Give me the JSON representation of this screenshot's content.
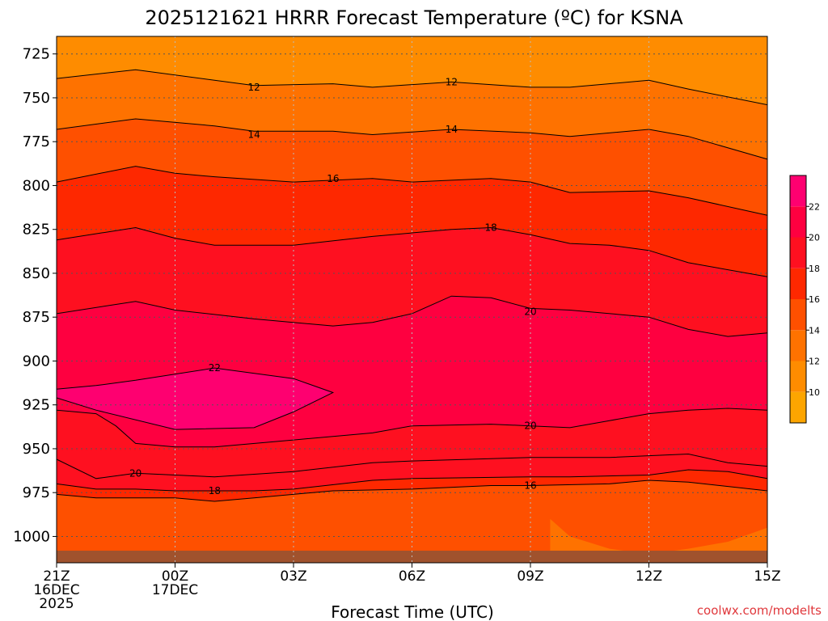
{
  "chart_data": {
    "type": "contour",
    "title": "2025121621 HRRR Forecast Temperature (ºC) for KSNA",
    "xlabel": "Forecast Time (UTC)",
    "ylabel": "",
    "credit": "coolwx.com/modelts",
    "x_hours": [
      0,
      18
    ],
    "y_levels": [
      1015,
      715
    ],
    "x_ticks": [
      {
        "h": 0,
        "lines": [
          "21Z",
          "16DEC",
          "2025"
        ]
      },
      {
        "h": 3,
        "lines": [
          "00Z",
          "17DEC"
        ]
      },
      {
        "h": 6,
        "lines": [
          "03Z"
        ]
      },
      {
        "h": 9,
        "lines": [
          "06Z"
        ]
      },
      {
        "h": 12,
        "lines": [
          "09Z"
        ]
      },
      {
        "h": 15,
        "lines": [
          "12Z"
        ]
      },
      {
        "h": 18,
        "lines": [
          "15Z"
        ]
      }
    ],
    "y_ticks": [
      725,
      750,
      775,
      800,
      825,
      850,
      875,
      900,
      925,
      950,
      975,
      1000
    ],
    "colorbar": {
      "labels": [
        10,
        12,
        14,
        16,
        18,
        20,
        22
      ],
      "colors": [
        "#fda500",
        "#fe8c00",
        "#fe7200",
        "#fe5000",
        "#fe2800",
        "#fe1020",
        "#fe0040",
        "#fe0070"
      ]
    },
    "contours": [
      {
        "value": 12,
        "label_positions": [
          {
            "h": 5,
            "p": 744
          },
          {
            "h": 10,
            "p": 741
          }
        ],
        "points": [
          [
            0,
            739
          ],
          [
            2,
            734
          ],
          [
            4,
            740
          ],
          [
            5,
            743
          ],
          [
            7,
            742
          ],
          [
            8,
            744
          ],
          [
            10,
            741
          ],
          [
            12,
            744
          ],
          [
            13,
            744
          ],
          [
            15,
            740
          ],
          [
            16,
            745
          ],
          [
            18,
            754
          ]
        ]
      },
      {
        "value": 14,
        "label_positions": [
          {
            "h": 5,
            "p": 771
          },
          {
            "h": 10,
            "p": 768
          }
        ],
        "points": [
          [
            0,
            768
          ],
          [
            2,
            762
          ],
          [
            4,
            766
          ],
          [
            5,
            769
          ],
          [
            7,
            769
          ],
          [
            8,
            771
          ],
          [
            10,
            768
          ],
          [
            12,
            770
          ],
          [
            13,
            772
          ],
          [
            15,
            768
          ],
          [
            16,
            772
          ],
          [
            18,
            785
          ]
        ]
      },
      {
        "value": 16,
        "label_positions": [
          {
            "h": 7,
            "p": 796
          }
        ],
        "points": [
          [
            0,
            798
          ],
          [
            2,
            789
          ],
          [
            3,
            793
          ],
          [
            4,
            795
          ],
          [
            6,
            798
          ],
          [
            7,
            797
          ],
          [
            8,
            796
          ],
          [
            9,
            798
          ],
          [
            10,
            797
          ],
          [
            11,
            796
          ],
          [
            12,
            798
          ],
          [
            13,
            804
          ],
          [
            15,
            803
          ],
          [
            16,
            807
          ],
          [
            18,
            817
          ]
        ]
      },
      {
        "value": 18,
        "label_positions": [
          {
            "h": 11,
            "p": 824
          }
        ],
        "points": [
          [
            0,
            831
          ],
          [
            2,
            824
          ],
          [
            3,
            830
          ],
          [
            4,
            834
          ],
          [
            6,
            834
          ],
          [
            8,
            829
          ],
          [
            10,
            825
          ],
          [
            11,
            824
          ],
          [
            12,
            828
          ],
          [
            13,
            833
          ],
          [
            14,
            834
          ],
          [
            15,
            837
          ],
          [
            16,
            844
          ],
          [
            18,
            852
          ]
        ]
      },
      {
        "value": 20,
        "label_positions": [
          {
            "h": 12,
            "p": 872
          }
        ],
        "points": [
          [
            0,
            873
          ],
          [
            2,
            866
          ],
          [
            3,
            871
          ],
          [
            5,
            876
          ],
          [
            7,
            880
          ],
          [
            8,
            878
          ],
          [
            9,
            873
          ],
          [
            10,
            863
          ],
          [
            11,
            864
          ],
          [
            12,
            870
          ],
          [
            13,
            871
          ],
          [
            15,
            875
          ],
          [
            16,
            882
          ],
          [
            17,
            886
          ],
          [
            18,
            884
          ]
        ]
      },
      {
        "value": 22,
        "label_positions": [
          {
            "h": 4,
            "p": 904
          }
        ],
        "points": [
          [
            0,
            916
          ],
          [
            1,
            914
          ],
          [
            2,
            911
          ],
          [
            4,
            904
          ],
          [
            6,
            910
          ],
          [
            7,
            918
          ],
          [
            6,
            929
          ],
          [
            5,
            938
          ],
          [
            3,
            939
          ],
          [
            1,
            928
          ],
          [
            0,
            921
          ]
        ],
        "closed": true
      },
      {
        "value": 20,
        "label_positions": [
          {
            "h": 12,
            "p": 937
          }
        ],
        "points": [
          [
            0,
            928
          ],
          [
            1,
            930
          ],
          [
            1.5,
            937
          ],
          [
            2,
            947
          ],
          [
            3,
            949
          ],
          [
            4,
            949
          ],
          [
            6,
            945
          ],
          [
            8,
            941
          ],
          [
            9,
            937
          ],
          [
            11,
            936
          ],
          [
            12,
            937
          ],
          [
            13,
            938
          ],
          [
            14,
            934
          ],
          [
            15,
            930
          ],
          [
            16,
            928
          ],
          [
            17,
            927
          ],
          [
            18,
            928
          ]
        ]
      },
      {
        "value": 20,
        "label_positions": [
          {
            "h": 2,
            "p": 964
          }
        ],
        "points": [
          [
            0,
            956
          ],
          [
            1,
            967
          ],
          [
            2,
            964
          ],
          [
            3,
            965
          ],
          [
            4,
            966
          ],
          [
            6,
            963
          ],
          [
            8,
            958
          ],
          [
            9,
            957
          ],
          [
            12,
            955
          ],
          [
            14,
            955
          ],
          [
            16,
            953
          ],
          [
            17,
            958
          ],
          [
            18,
            960
          ]
        ]
      },
      {
        "value": 18,
        "label_positions": [
          {
            "h": 4,
            "p": 974
          }
        ],
        "points": [
          [
            0,
            970
          ],
          [
            1,
            973
          ],
          [
            2,
            973
          ],
          [
            3,
            974
          ],
          [
            5,
            974
          ],
          [
            6,
            973
          ],
          [
            8,
            968
          ],
          [
            9,
            967
          ],
          [
            12,
            966
          ],
          [
            13,
            966
          ],
          [
            15,
            965
          ],
          [
            16,
            962
          ],
          [
            17,
            963
          ],
          [
            18,
            967
          ]
        ]
      },
      {
        "value": 16,
        "label_positions": [
          {
            "h": 12,
            "p": 971
          }
        ],
        "points": [
          [
            0,
            976
          ],
          [
            1,
            978
          ],
          [
            2,
            978
          ],
          [
            3,
            978
          ],
          [
            4,
            980
          ],
          [
            5,
            978
          ],
          [
            7,
            974
          ],
          [
            9,
            973
          ],
          [
            11,
            971
          ],
          [
            12,
            971
          ],
          [
            14,
            970
          ],
          [
            15,
            968
          ],
          [
            16,
            969
          ],
          [
            18,
            974
          ]
        ]
      }
    ]
  }
}
